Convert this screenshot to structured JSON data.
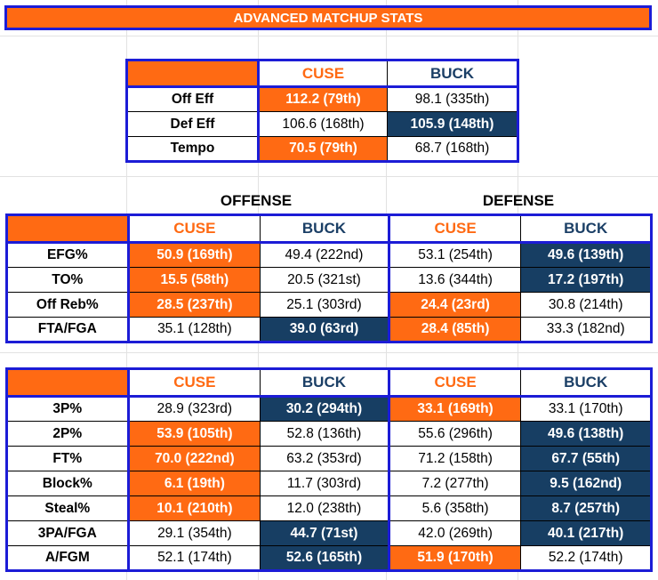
{
  "title": "ADVANCED MATCHUP STATS",
  "teams": {
    "home": "CUSE",
    "away": "BUCK"
  },
  "colors": {
    "cuse": "#ff6a13",
    "buck": "#173e63",
    "border": "#1c1cd6"
  },
  "summary": [
    {
      "label": "Off Eff",
      "cuse": "112.2 (79th)",
      "buck": "98.1 (335th)",
      "highlight": "cuse"
    },
    {
      "label": "Def Eff",
      "cuse": "106.6 (168th)",
      "buck": "105.9 (148th)",
      "highlight": "buck"
    },
    {
      "label": "Tempo",
      "cuse": "70.5 (79th)",
      "buck": "68.7 (168th)",
      "highlight": "cuse"
    }
  ],
  "section_labels": {
    "offense": "OFFENSE",
    "defense": "DEFENSE"
  },
  "four_factors": [
    {
      "label": "EFG%",
      "off_cuse": "50.9 (169th)",
      "off_buck": "49.4 (222nd)",
      "def_cuse": "53.1 (254th)",
      "def_buck": "49.6 (139th)",
      "off_hl": "cuse",
      "def_hl": "buck"
    },
    {
      "label": "TO%",
      "off_cuse": "15.5 (58th)",
      "off_buck": "20.5 (321st)",
      "def_cuse": "13.6 (344th)",
      "def_buck": "17.2 (197th)",
      "off_hl": "cuse",
      "def_hl": "buck"
    },
    {
      "label": "Off Reb%",
      "off_cuse": "28.5 (237th)",
      "off_buck": "25.1 (303rd)",
      "def_cuse": "24.4 (23rd)",
      "def_buck": "30.8 (214th)",
      "off_hl": "cuse",
      "def_hl": "cuse"
    },
    {
      "label": "FTA/FGA",
      "off_cuse": "35.1 (128th)",
      "off_buck": "39.0 (63rd)",
      "def_cuse": "28.4 (85th)",
      "def_buck": "33.3 (182nd)",
      "off_hl": "buck",
      "def_hl": "cuse"
    }
  ],
  "misc_stats": [
    {
      "label": "3P%",
      "off_cuse": "28.9 (323rd)",
      "off_buck": "30.2 (294th)",
      "def_cuse": "33.1 (169th)",
      "def_buck": "33.1 (170th)",
      "off_hl": "buck",
      "def_hl": "cuse"
    },
    {
      "label": "2P%",
      "off_cuse": "53.9 (105th)",
      "off_buck": "52.8 (136th)",
      "def_cuse": "55.6 (296th)",
      "def_buck": "49.6 (138th)",
      "off_hl": "cuse",
      "def_hl": "buck"
    },
    {
      "label": "FT%",
      "off_cuse": "70.0 (222nd)",
      "off_buck": "63.2 (353rd)",
      "def_cuse": "71.2 (158th)",
      "def_buck": "67.7 (55th)",
      "off_hl": "cuse",
      "def_hl": "buck"
    },
    {
      "label": "Block%",
      "off_cuse": "6.1 (19th)",
      "off_buck": "11.7 (303rd)",
      "def_cuse": "7.2 (277th)",
      "def_buck": "9.5 (162nd)",
      "off_hl": "cuse",
      "def_hl": "buck"
    },
    {
      "label": "Steal%",
      "off_cuse": "10.1 (210th)",
      "off_buck": "12.0 (238th)",
      "def_cuse": "5.6 (358th)",
      "def_buck": "8.7 (257th)",
      "off_hl": "cuse",
      "def_hl": "buck"
    },
    {
      "label": "3PA/FGA",
      "off_cuse": "29.1 (354th)",
      "off_buck": "44.7 (71st)",
      "def_cuse": "42.0 (269th)",
      "def_buck": "40.1 (217th)",
      "off_hl": "buck",
      "def_hl": "buck"
    },
    {
      "label": "A/FGM",
      "off_cuse": "52.1 (174th)",
      "off_buck": "52.6 (165th)",
      "def_cuse": "51.9 (170th)",
      "def_buck": "52.2 (174th)",
      "off_hl": "buck",
      "def_hl": "cuse"
    }
  ]
}
